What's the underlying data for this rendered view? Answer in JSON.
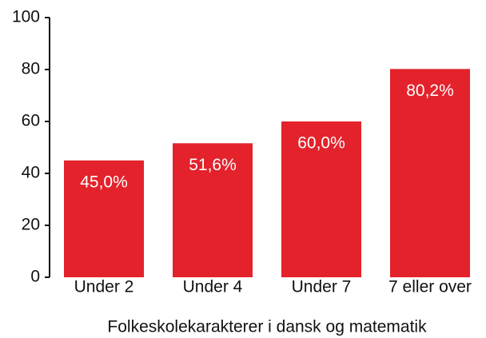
{
  "chart_data": {
    "type": "bar",
    "categories": [
      "Under 2",
      "Under 4",
      "Under 7",
      "7 eller over"
    ],
    "values": [
      45.0,
      51.6,
      60.0,
      80.2
    ],
    "value_labels": [
      "45,0%",
      "51,6%",
      "60,0%",
      "80,2%"
    ],
    "color": "#e3222b",
    "xlabel": "Folkeskolekarakterer i dansk og matematik",
    "ylim": [
      0,
      100
    ],
    "yticks": [
      0,
      20,
      40,
      60,
      80,
      100
    ]
  }
}
